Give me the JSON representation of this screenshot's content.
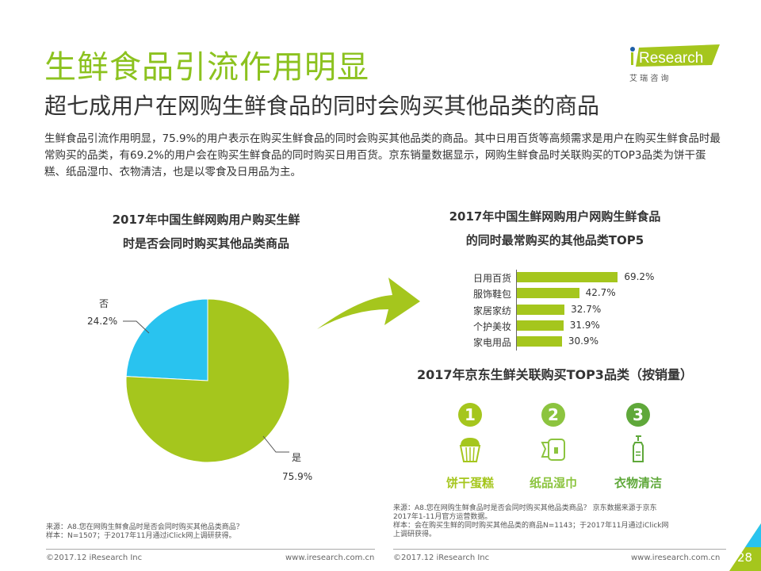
{
  "header": {
    "title": "生鲜食品引流作用明显",
    "subtitle": "超七成用户在网购生鲜食品的同时会购买其他品类的商品",
    "intro": "生鲜食品引流作用明显，75.9%的用户表示在购买生鲜食品的同时会购买其他品类的商品。其中日用百货等高频需求是用户在购买生鲜食品时最常购买的品类，有69.2%的用户会在购买生鲜食品的同时购买日用百货。京东销量数据显示，网购生鲜食品时关联购买的TOP3品类为饼干蛋糕、纸品湿巾、衣物清洁，也是以零食及日用品为主。"
  },
  "logo": {
    "brand": "iResearch",
    "cn": "艾 瑞 咨 询"
  },
  "chart_data": [
    {
      "type": "pie",
      "title_line1": "2017年中国生鲜网购用户购买生鲜",
      "title_line2": "时是否会同时购买其他品类商品",
      "slices": [
        {
          "label": "否",
          "value": 24.2,
          "display": "24.2%",
          "color": "#29c3ef"
        },
        {
          "label": "是",
          "value": 75.9,
          "display": "75.9%",
          "color": "#a5c61d"
        }
      ]
    },
    {
      "type": "bar",
      "title_line1": "2017年中国生鲜网购用户网购生鲜食品",
      "title_line2": "的同时最常购买的其他品类TOP5",
      "categories": [
        "日用百货",
        "服饰鞋包",
        "家居家纺",
        "个护美妆",
        "家电用品"
      ],
      "values": [
        69.2,
        42.7,
        32.7,
        31.9,
        30.9
      ],
      "labels": [
        "69.2%",
        "42.7%",
        "32.7%",
        "31.9%",
        "30.9%"
      ],
      "color": "#a5c61d"
    }
  ],
  "top3": {
    "title": "2017年京东生鲜关联购买TOP3品类（按销量）",
    "items": [
      {
        "rank": "1",
        "name": "饼干蛋糕",
        "icon": "cupcake-icon",
        "color": "#a5c61d"
      },
      {
        "rank": "2",
        "name": "纸品湿巾",
        "icon": "tissue-roll-icon",
        "color": "#8cc43f"
      },
      {
        "rank": "3",
        "name": "衣物清洁",
        "icon": "detergent-bottle-icon",
        "color": "#5fa83a"
      }
    ]
  },
  "footer": {
    "left_source": "来源：A8.您在网购生鲜食品时是否会同时购买其他品类商品？",
    "left_sample": "样本：N=1507；于2017年11月通过iClick网上调研获得。",
    "right_source1": "来源：A8.您在网购生鲜食品时是否会同时购买其他品类商品？ 京东数据来源于京东",
    "right_source2": "2017年1-11月官方运营数据。",
    "right_sample1": "样本：会在购买生鲜的同时购买其他品类的商品N=1143；于2017年11月通过iClick网",
    "right_sample2": "上调研获得。",
    "copyright": "©2017.12 iResearch Inc",
    "url": "www.iresearch.com.cn",
    "page": "28"
  }
}
